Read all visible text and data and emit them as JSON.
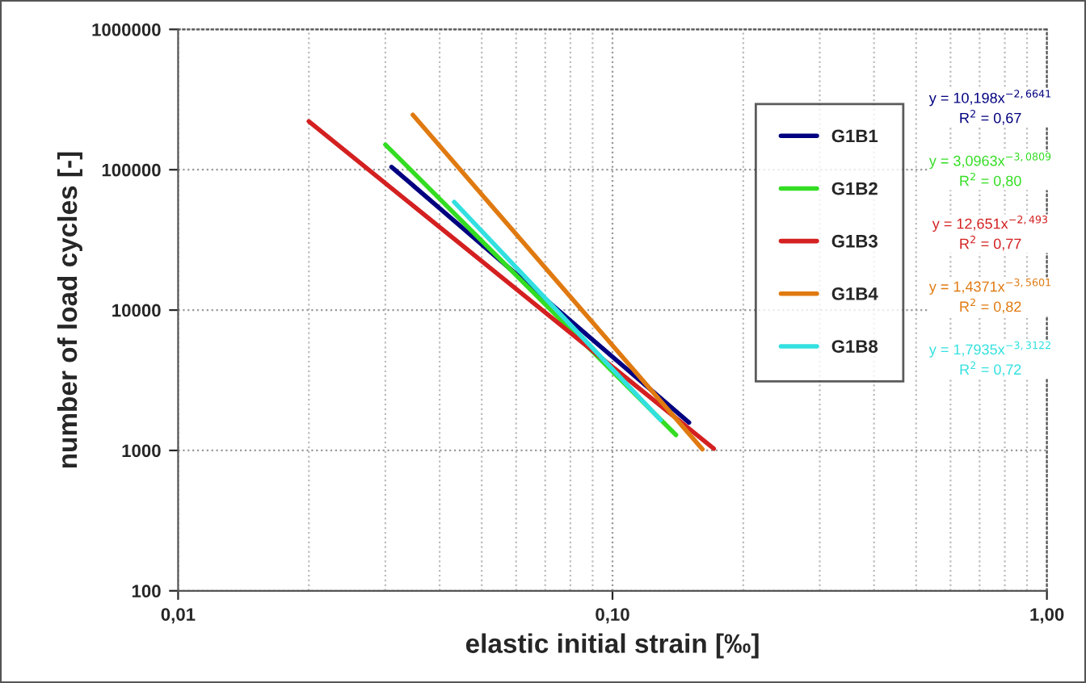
{
  "chart_data": {
    "type": "line",
    "xlabel": "elastic initial strain [‰]",
    "ylabel": "number of load cycles [-]",
    "log": "xy",
    "xlim": [
      0.01,
      1.0
    ],
    "ylim": [
      100,
      1000000
    ],
    "xticks": [
      {
        "value": 0.01,
        "label": "0,01"
      },
      {
        "value": 0.1,
        "label": "0,10"
      },
      {
        "value": 1.0,
        "label": "1,00"
      }
    ],
    "yticks": [
      100,
      1000,
      10000,
      100000,
      1000000
    ],
    "grid": true,
    "legend": "right",
    "marker": "none",
    "line_style": "solid",
    "series": [
      {
        "name": "G1B1",
        "color": "#000080",
        "x": [
          0.031,
          0.15
        ],
        "values": [
          104600,
          1580
        ]
      },
      {
        "name": "G1B2",
        "color": "#33dd22",
        "x": [
          0.03,
          0.14
        ],
        "values": [
          151000,
          1290
        ]
      },
      {
        "name": "G1B3",
        "color": "#d42020",
        "x": [
          0.02,
          0.171
        ],
        "values": [
          221000,
          1030
        ]
      },
      {
        "name": "G1B4",
        "color": "#e07a10",
        "x": [
          0.0347,
          0.161
        ],
        "values": [
          246000,
          1020
        ]
      },
      {
        "name": "G1B8",
        "color": "#33e0e0",
        "x": [
          0.0432,
          0.129
        ],
        "values": [
          58900,
          1650
        ]
      }
    ],
    "annotations": [
      "y = 10,198x$^{−2,6641}$\nR$^{2}$ = 0,67",
      "y = 3,0963x$^{−3,0809}$\nR$^{2}$ = 0,80",
      "y = 12,651x$^{−2,493}$\nR$^{2}$ = 0,77",
      "y = 1,4371x$^{−3,5601}$\nR$^{2}$ = 0,82",
      "y = 1,7935x$^{−3,3122}$\nR$^{2}$ = 0,72"
    ]
  }
}
